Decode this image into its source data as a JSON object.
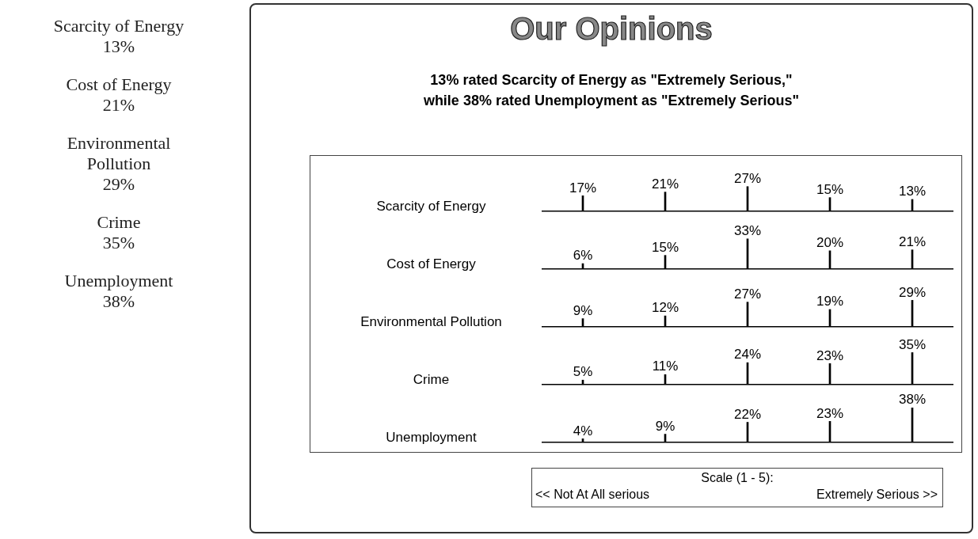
{
  "chart_data": [
    {
      "type": "other",
      "annotations": [
        "Scarcity of Energy",
        "13%",
        "Cost of Energy",
        "21%",
        "Environmental Pollution",
        "29%",
        "Crime",
        "35%",
        "Unemployment",
        "38%"
      ]
    },
    {
      "type": "bar",
      "title": "Our Opinions",
      "subtitle": "13% rated Scarcity of Energy as \"Extremely Serious,\"\nwhile 38% rated Unemployment as \"Extremely Serious\"",
      "ylabel": "Scarcity of Energy",
      "categories": [
        null,
        null,
        null,
        null,
        null
      ],
      "values": [
        17,
        21,
        27,
        15,
        13
      ],
      "value_labels": [
        "17%",
        "21%",
        "27%",
        "15%",
        "13%"
      ],
      "color": "#000000",
      "legend": false,
      "grid": false
    },
    {
      "type": "bar",
      "ylabel": "Cost of Energy",
      "categories": [
        null,
        null,
        null,
        null,
        null
      ],
      "values": [
        6,
        15,
        33,
        20,
        21
      ],
      "value_labels": [
        "6%",
        "15%",
        "33%",
        "20%",
        "21%"
      ],
      "color": "#000000",
      "legend": false,
      "grid": false
    },
    {
      "type": "bar",
      "ylabel": "Environmental Pollution",
      "categories": [
        null,
        null,
        null,
        null,
        null
      ],
      "values": [
        9,
        12,
        27,
        19,
        29
      ],
      "value_labels": [
        "9%",
        "12%",
        "27%",
        "19%",
        "29%"
      ],
      "color": "#000000",
      "legend": false,
      "grid": false
    },
    {
      "type": "bar",
      "ylabel": "Crime",
      "categories": [
        null,
        null,
        null,
        null,
        null
      ],
      "values": [
        5,
        11,
        24,
        23,
        35
      ],
      "value_labels": [
        "5%",
        "11%",
        "24%",
        "23%",
        "35%"
      ],
      "color": "#000000",
      "legend": false,
      "grid": false
    },
    {
      "type": "bar",
      "ylabel": "Unemployment",
      "categories": [
        null,
        null,
        null,
        null,
        null
      ],
      "values": [
        4,
        9,
        22,
        23,
        38
      ],
      "value_labels": [
        "4%",
        "9%",
        "22%",
        "23%",
        "38%"
      ],
      "color": "#000000",
      "legend": false,
      "grid": false,
      "annotations": [
        "Scale (1 - 5):",
        "<< Not At All serious",
        "Extremely Serious >>"
      ]
    }
  ]
}
